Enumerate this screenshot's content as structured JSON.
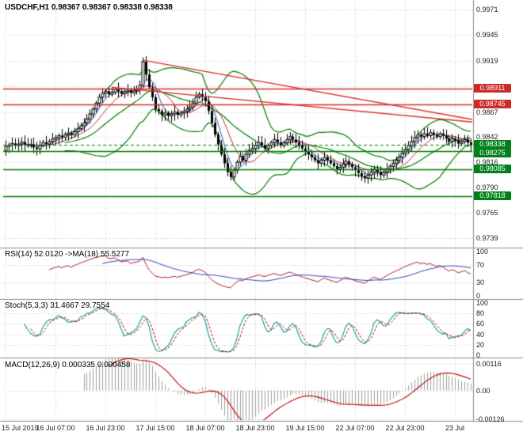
{
  "header": {
    "title_line": "USDCHF,H1  0.98367 0.98367 0.98338 0.98338",
    "symbol": "USDCHF",
    "timeframe": "H1",
    "ohlc": {
      "open": "0.98367",
      "high": "0.98367",
      "low": "0.98338",
      "close": "0.98338"
    }
  },
  "indicators": {
    "rsi": {
      "label": "RSI(14) 52.0120  ->MA(18) 55.5277",
      "value": 52.012,
      "ma_value": 55.5277,
      "ticks": [
        "100",
        "70",
        "30",
        "0"
      ],
      "grid": [
        30,
        70
      ]
    },
    "stoch": {
      "label": "Stoch(5,3,3) 31.4667 29.7554",
      "value": 31.4667,
      "signal": 29.7554,
      "ticks": [
        "100",
        "80",
        "60",
        "40",
        "20",
        "0"
      ],
      "grid": [
        20,
        40,
        60,
        80
      ]
    },
    "macd": {
      "label": "MACD(12,26,9) 0.000335 0.000458",
      "value": 0.000335,
      "signal": 0.000458,
      "ticks": [
        "0.00116",
        "0.00",
        "-0.00126"
      ],
      "grid": [
        0.00116,
        0,
        -0.00126
      ]
    }
  },
  "price_axis": {
    "ticks": [
      "0.9971",
      "0.9945",
      "0.9919",
      "0.9867",
      "0.9842",
      "0.9816",
      "0.9790",
      "0.9765",
      "0.9739"
    ],
    "badges": {
      "resistance": [
        "0.98911",
        "0.98745"
      ],
      "current": "0.98338",
      "support": [
        "0.98275",
        "0.98085",
        "0.97818"
      ]
    }
  },
  "time_axis": {
    "labels": [
      "15 Jul 2019",
      "16 Jul 07:00",
      "16 Jul 23:00",
      "17 Jul 15:00",
      "18 Jul 07:00",
      "18 Jul 23:00",
      "19 Jul 15:00",
      "22 Jul 07:00",
      "22 Jul 23:00",
      "23 Jul"
    ]
  },
  "colors": {
    "grid": "#c9c9c9",
    "candle": "#000000",
    "candle_up_fill": "#ffffff",
    "candle_down_fill": "#000000",
    "bollinger": "#007d00",
    "ma_fast": "#2f4fbf",
    "ma_slow": "#bf3030",
    "resistance_line": "#d32f2f",
    "support_line": "#007d00",
    "trendline": "#d93030",
    "badge_red": "#c92a2a",
    "badge_green": "#00801a",
    "rsi_line": "#b22222",
    "rsi_ma": "#3344cc",
    "stoch_main": "#00a0a0",
    "stoch_signal": "#c80000",
    "macd_hist": "#a0a0a0",
    "macd_signal": "#c80000",
    "separator": "#8a8a8a"
  },
  "chart_data": {
    "type": "candlestick",
    "symbol": "USDCHF",
    "timeframe": "H1",
    "title": "USDCHF,H1",
    "ylim": [
      0.9739,
      0.9971
    ],
    "x_labels": [
      "15 Jul 2019",
      "16 Jul 07:00",
      "16 Jul 23:00",
      "17 Jul 15:00",
      "18 Jul 07:00",
      "18 Jul 23:00",
      "19 Jul 15:00",
      "22 Jul 07:00",
      "22 Jul 23:00",
      "23 Jul"
    ],
    "bars_per_label": 16,
    "grid_prices": [
      0.9971,
      0.9945,
      0.9919,
      0.9893,
      0.9867,
      0.9842,
      0.9816,
      0.979,
      0.9765,
      0.9739
    ],
    "closes": [
      0.9832,
      0.98335,
      0.9835,
      0.9833,
      0.98345,
      0.98365,
      0.9834,
      0.98325,
      0.9834,
      0.9831,
      0.98295,
      0.9833,
      0.9836,
      0.98345,
      0.9837,
      0.98395,
      0.9841,
      0.9843,
      0.98415,
      0.9844,
      0.98455,
      0.9844,
      0.9847,
      0.985,
      0.9853,
      0.9856,
      0.986,
      0.9865,
      0.987,
      0.9876,
      0.9882,
      0.9886,
      0.9888,
      0.9885,
      0.9887,
      0.989,
      0.9888,
      0.98855,
      0.98875,
      0.9889,
      0.98865,
      0.98885,
      0.98905,
      0.9894,
      0.9918,
      0.9905,
      0.9892,
      0.9882,
      0.987,
      0.9868,
      0.9864,
      0.9866,
      0.9863,
      0.9865,
      0.9867,
      0.9864,
      0.9866,
      0.9868,
      0.987,
      0.9872,
      0.9876,
      0.9882,
      0.9885,
      0.9882,
      0.9878,
      0.9868,
      0.9856,
      0.9844,
      0.9834,
      0.9824,
      0.9815,
      0.9806,
      0.9801,
      0.9808,
      0.9816,
      0.9822,
      0.9818,
      0.9824,
      0.9828,
      0.983,
      0.9833,
      0.9836,
      0.9833,
      0.983,
      0.9833,
      0.9836,
      0.9839,
      0.9836,
      0.9833,
      0.9836,
      0.9839,
      0.9842,
      0.9839,
      0.9836,
      0.9833,
      0.983,
      0.9827,
      0.9824,
      0.9821,
      0.9818,
      0.9815,
      0.9818,
      0.9821,
      0.9818,
      0.9815,
      0.9812,
      0.9809,
      0.9811,
      0.9814,
      0.9817,
      0.9814,
      0.9811,
      0.9808,
      0.9805,
      0.9802,
      0.98,
      0.9803,
      0.9806,
      0.9809,
      0.9806,
      0.9803,
      0.9806,
      0.9809,
      0.9812,
      0.9815,
      0.9818,
      0.9821,
      0.9825,
      0.9829,
      0.9833,
      0.9837,
      0.9841,
      0.9844,
      0.9842,
      0.9845,
      0.9843,
      0.9846,
      0.9844,
      0.9842,
      0.9845,
      0.9843,
      0.984,
      0.9837,
      0.984,
      0.9838,
      0.9835,
      0.9837,
      0.9839,
      0.9836,
      0.98338
    ],
    "levels": {
      "resistance": [
        0.98911,
        0.98745
      ],
      "support": [
        0.98275,
        0.98085,
        0.97818
      ],
      "current_price": 0.98338
    },
    "trendlines": [
      {
        "from_bar": 44,
        "from_price": 0.99195,
        "to_bar": 152,
        "to_price": 0.9858
      },
      {
        "from_bar": 34,
        "from_price": 0.9892,
        "to_bar": 152,
        "to_price": 0.9856
      }
    ],
    "overlays": [
      {
        "name": "Bollinger Bands",
        "period": 20,
        "deviation": 2
      },
      {
        "name": "MA fast",
        "period": 5
      },
      {
        "name": "MA slow",
        "period": 10
      }
    ],
    "panes": [
      {
        "name": "RSI",
        "params": "(14)",
        "type": "line",
        "value": 52.012,
        "ma_period": 18,
        "ma_value": 55.5277,
        "range": [
          0,
          100
        ]
      },
      {
        "name": "Stochastic",
        "params": "(5,3,3)",
        "type": "line",
        "value": 31.4667,
        "signal": 29.7554,
        "range": [
          0,
          100
        ]
      },
      {
        "name": "MACD",
        "params": "(12,26,9)",
        "type": "histogram",
        "value": 0.000335,
        "signal": 0.000458
      }
    ]
  }
}
